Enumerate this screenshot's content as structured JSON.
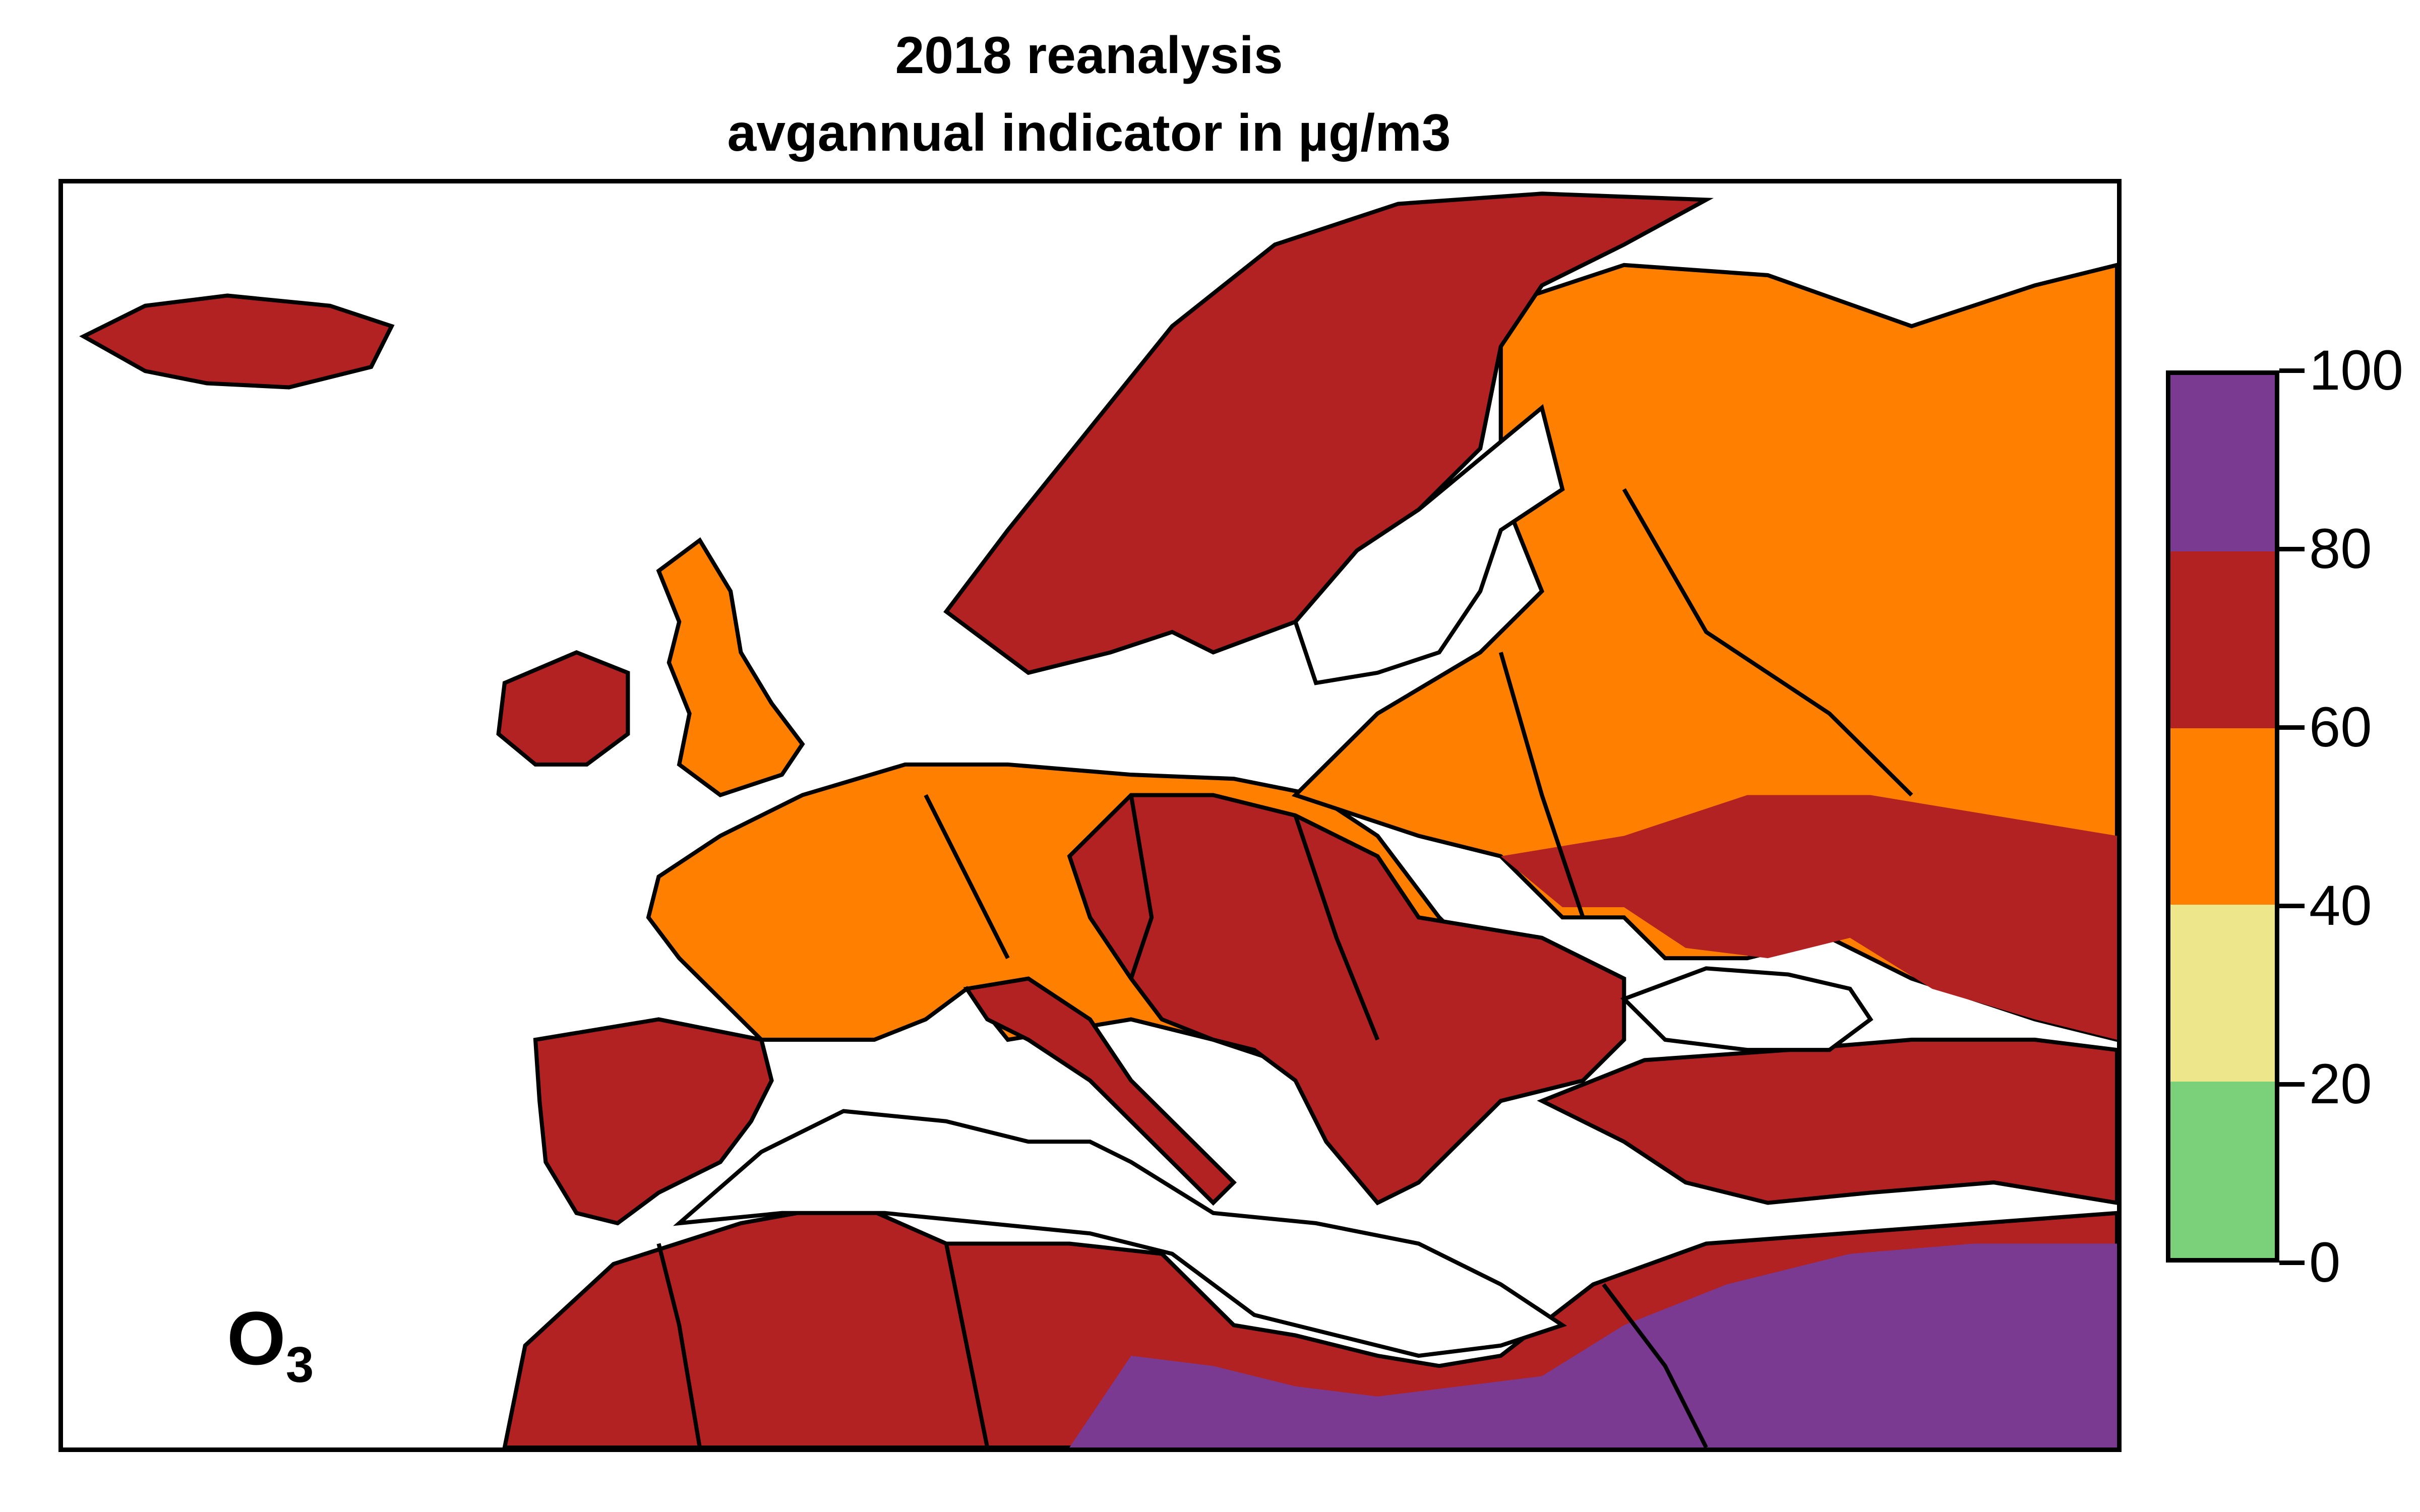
{
  "title": {
    "line1": "2018 reanalysis",
    "line2": "avgannual indicator in µg/m3"
  },
  "pollutant": {
    "base": "O",
    "subscript": "3"
  },
  "legend": {
    "bins": [
      {
        "from": 0,
        "to": 20,
        "color": "#7bd17a"
      },
      {
        "from": 20,
        "to": 40,
        "color": "#ede68a"
      },
      {
        "from": 40,
        "to": 60,
        "color": "#ff8000"
      },
      {
        "from": 60,
        "to": 80,
        "color": "#b22222"
      },
      {
        "from": 80,
        "to": 100,
        "color": "#7a3a91"
      }
    ],
    "ticks": [
      "0",
      "20",
      "40",
      "60",
      "80",
      "100"
    ]
  },
  "map": {
    "sea_color": "#ffffff",
    "border_color": "#000000"
  }
}
